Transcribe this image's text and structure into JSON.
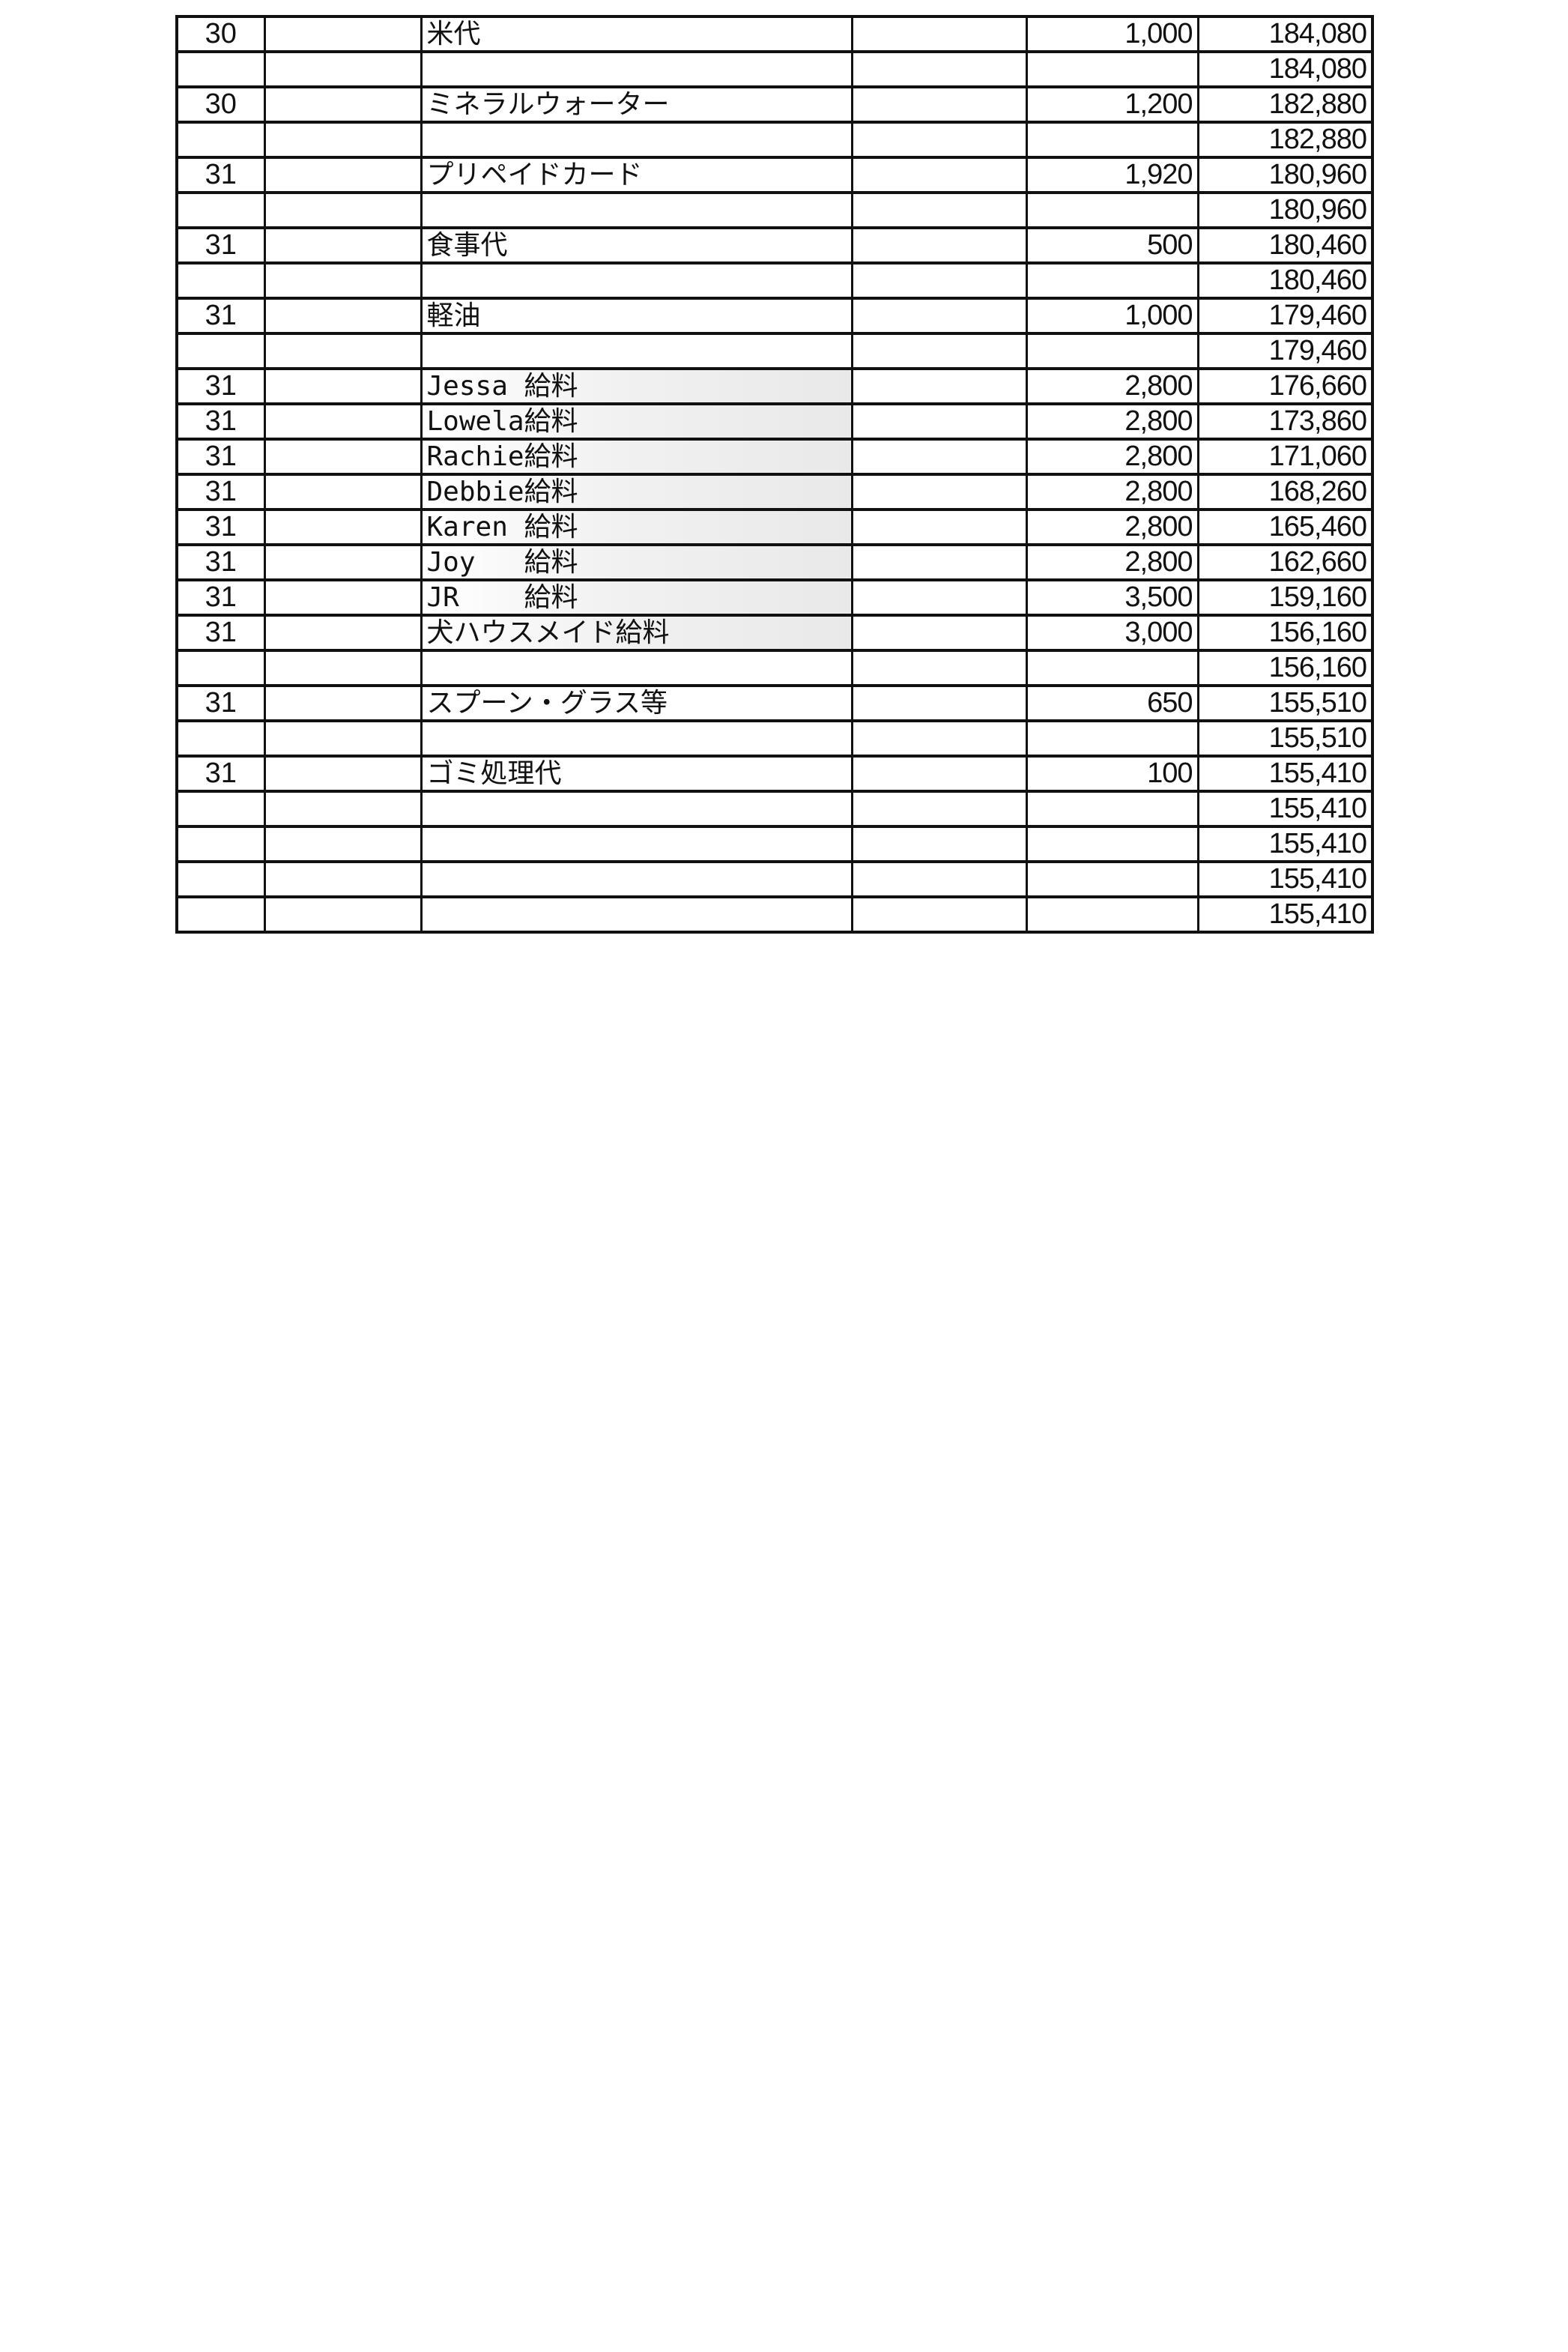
{
  "ledger": {
    "rows": [
      {
        "day": "30",
        "note": "",
        "description": "米代",
        "ref": "",
        "amount": "1,000",
        "balance": "184,080",
        "highlighted": false
      },
      {
        "day": "",
        "note": "",
        "description": "",
        "ref": "",
        "amount": "",
        "balance": "184,080",
        "highlighted": false
      },
      {
        "day": "30",
        "note": "",
        "description": "ミネラルウォーター",
        "ref": "",
        "amount": "1,200",
        "balance": "182,880",
        "highlighted": false
      },
      {
        "day": "",
        "note": "",
        "description": "",
        "ref": "",
        "amount": "",
        "balance": "182,880",
        "highlighted": false
      },
      {
        "day": "31",
        "note": "",
        "description": "プリペイドカード",
        "ref": "",
        "amount": "1,920",
        "balance": "180,960",
        "highlighted": false
      },
      {
        "day": "",
        "note": "",
        "description": "",
        "ref": "",
        "amount": "",
        "balance": "180,960",
        "highlighted": false
      },
      {
        "day": "31",
        "note": "",
        "description": "食事代",
        "ref": "",
        "amount": "500",
        "balance": "180,460",
        "highlighted": false
      },
      {
        "day": "",
        "note": "",
        "description": "",
        "ref": "",
        "amount": "",
        "balance": "180,460",
        "highlighted": false
      },
      {
        "day": "31",
        "note": "",
        "description": "軽油",
        "ref": "",
        "amount": "1,000",
        "balance": "179,460",
        "highlighted": false
      },
      {
        "day": "",
        "note": "",
        "description": "",
        "ref": "",
        "amount": "",
        "balance": "179,460",
        "highlighted": false
      },
      {
        "day": "31",
        "note": "",
        "description": "Jessa 給料",
        "ref": "",
        "amount": "2,800",
        "balance": "176,660",
        "highlighted": true
      },
      {
        "day": "31",
        "note": "",
        "description": "Lowela給料",
        "ref": "",
        "amount": "2,800",
        "balance": "173,860",
        "highlighted": true
      },
      {
        "day": "31",
        "note": "",
        "description": "Rachie給料",
        "ref": "",
        "amount": "2,800",
        "balance": "171,060",
        "highlighted": true
      },
      {
        "day": "31",
        "note": "",
        "description": "Debbie給料",
        "ref": "",
        "amount": "2,800",
        "balance": "168,260",
        "highlighted": true
      },
      {
        "day": "31",
        "note": "",
        "description": "Karen 給料",
        "ref": "",
        "amount": "2,800",
        "balance": "165,460",
        "highlighted": true
      },
      {
        "day": "31",
        "note": "",
        "description": "Joy   給料",
        "ref": "",
        "amount": "2,800",
        "balance": "162,660",
        "highlighted": true
      },
      {
        "day": "31",
        "note": "",
        "description": "JR    給料",
        "ref": "",
        "amount": "3,500",
        "balance": "159,160",
        "highlighted": true
      },
      {
        "day": "31",
        "note": "",
        "description": "犬ハウスメイド給料",
        "ref": "",
        "amount": "3,000",
        "balance": "156,160",
        "highlighted": true
      },
      {
        "day": "",
        "note": "",
        "description": "",
        "ref": "",
        "amount": "",
        "balance": "156,160",
        "highlighted": false
      },
      {
        "day": "31",
        "note": "",
        "description": "スプーン・グラス等",
        "ref": "",
        "amount": "650",
        "balance": "155,510",
        "highlighted": false
      },
      {
        "day": "",
        "note": "",
        "description": "",
        "ref": "",
        "amount": "",
        "balance": "155,510",
        "highlighted": false
      },
      {
        "day": "31",
        "note": "",
        "description": "ゴミ処理代",
        "ref": "",
        "amount": "100",
        "balance": "155,410",
        "highlighted": false
      },
      {
        "day": "",
        "note": "",
        "description": "",
        "ref": "",
        "amount": "",
        "balance": "155,410",
        "highlighted": false
      },
      {
        "day": "",
        "note": "",
        "description": "",
        "ref": "",
        "amount": "",
        "balance": "155,410",
        "highlighted": false
      },
      {
        "day": "",
        "note": "",
        "description": "",
        "ref": "",
        "amount": "",
        "balance": "155,410",
        "highlighted": false
      },
      {
        "day": "",
        "note": "",
        "description": "",
        "ref": "",
        "amount": "",
        "balance": "155,410",
        "highlighted": false
      }
    ]
  }
}
